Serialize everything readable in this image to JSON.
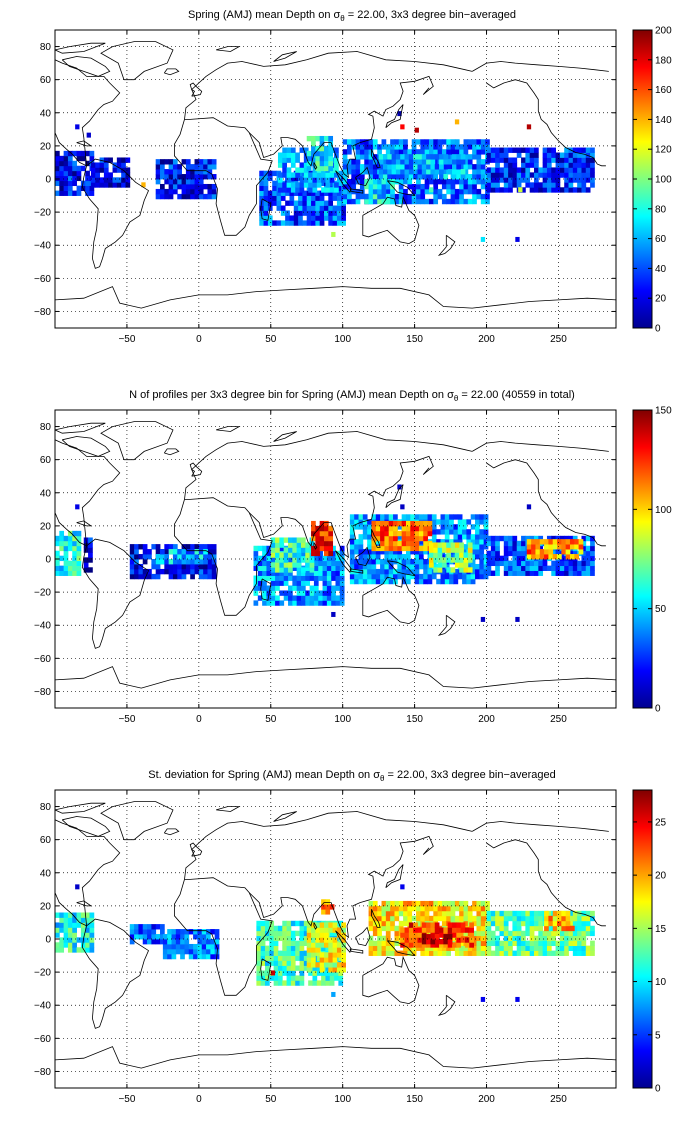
{
  "chart_data": [
    {
      "type": "heatmap",
      "title": "Spring (AMJ) mean Depth on",
      "title_symbol": "σ",
      "title_sub": "θ",
      "title_rest": " = 22.00, 3x3 degree bin−averaged",
      "xticks": [
        "−50",
        "0",
        "50",
        "100",
        "150",
        "200",
        "250"
      ],
      "xtick_values": [
        -50,
        0,
        50,
        100,
        150,
        200,
        250
      ],
      "yticks": [
        "80",
        "60",
        "40",
        "20",
        "0",
        "−20",
        "−40",
        "−60",
        "−80"
      ],
      "ytick_values": [
        80,
        60,
        40,
        20,
        0,
        -20,
        -40,
        -60,
        -80
      ],
      "xlim": [
        -100,
        290
      ],
      "ylim": [
        -90,
        90
      ],
      "grid": true,
      "colorbar": {
        "ticks": [
          "200",
          "180",
          "160",
          "140",
          "120",
          "100",
          "80",
          "60",
          "40",
          "20",
          "0"
        ],
        "tick_values": [
          200,
          180,
          160,
          140,
          120,
          100,
          80,
          60,
          40,
          20,
          0
        ],
        "range": [
          0,
          200
        ]
      },
      "regions": [
        {
          "x": [
            -100,
            -75
          ],
          "y": [
            -10,
            15
          ],
          "value": 25
        },
        {
          "x": [
            -75,
            -48
          ],
          "y": [
            -5,
            12
          ],
          "value": 20
        },
        {
          "x": [
            -30,
            12
          ],
          "y": [
            -12,
            12
          ],
          "value": 28
        },
        {
          "x": [
            42,
            100
          ],
          "y": [
            -28,
            5
          ],
          "value": 40
        },
        {
          "x": [
            55,
            95
          ],
          "y": [
            -8,
            18
          ],
          "value": 55
        },
        {
          "x": [
            75,
            92
          ],
          "y": [
            5,
            25
          ],
          "value": 75
        },
        {
          "x": [
            100,
            200
          ],
          "y": [
            -15,
            22
          ],
          "value": 45
        },
        {
          "x": [
            125,
            185
          ],
          "y": [
            0,
            15
          ],
          "value": 60
        },
        {
          "x": [
            200,
            275
          ],
          "y": [
            -8,
            18
          ],
          "value": 32
        },
        {
          "x": [
            115,
            135
          ],
          "y": [
            -15,
            -2
          ],
          "value": 70
        }
      ],
      "points": [
        {
          "x": -86,
          "y": 30,
          "value": 20
        },
        {
          "x": -78,
          "y": 25,
          "value": 15
        },
        {
          "x": -40,
          "y": -5,
          "value": 140
        },
        {
          "x": 138,
          "y": 38,
          "value": 10
        },
        {
          "x": 140,
          "y": 30,
          "value": 175
        },
        {
          "x": 150,
          "y": 28,
          "value": 190
        },
        {
          "x": 178,
          "y": 33,
          "value": 140
        },
        {
          "x": 228,
          "y": 30,
          "value": 190
        },
        {
          "x": 92,
          "y": -35,
          "value": 110
        },
        {
          "x": 196,
          "y": -38,
          "value": 70
        },
        {
          "x": 220,
          "y": -38,
          "value": 20
        },
        {
          "x": 222,
          "y": -8,
          "value": 115
        },
        {
          "x": 160,
          "y": -8,
          "value": 90
        }
      ]
    },
    {
      "type": "heatmap",
      "title": "N of profiles per 3x3 degree bin for Spring (AMJ) mean Depth on",
      "title_symbol": "σ",
      "title_sub": "θ",
      "title_rest": " = 22.00 (40559 in total)",
      "xticks": [
        "−50",
        "0",
        "50",
        "100",
        "150",
        "200",
        "250"
      ],
      "xtick_values": [
        -50,
        0,
        50,
        100,
        150,
        200,
        250
      ],
      "yticks": [
        "80",
        "60",
        "40",
        "20",
        "0",
        "−20",
        "−40",
        "−60",
        "−80"
      ],
      "ytick_values": [
        80,
        60,
        40,
        20,
        0,
        -20,
        -40,
        -60,
        -80
      ],
      "xlim": [
        -100,
        290
      ],
      "ylim": [
        -90,
        90
      ],
      "grid": true,
      "colorbar": {
        "ticks": [
          "150",
          "100",
          "50",
          "0"
        ],
        "tick_values": [
          150,
          100,
          50,
          0
        ],
        "range": [
          0,
          150
        ]
      },
      "regions": [
        {
          "x": [
            -100,
            -82
          ],
          "y": [
            -10,
            15
          ],
          "value": 60
        },
        {
          "x": [
            -80,
            -75
          ],
          "y": [
            -8,
            12
          ],
          "value": 15
        },
        {
          "x": [
            -48,
            12
          ],
          "y": [
            -12,
            8
          ],
          "value": 18
        },
        {
          "x": [
            -30,
            5
          ],
          "y": [
            -3,
            5
          ],
          "value": 45
        },
        {
          "x": [
            38,
            100
          ],
          "y": [
            -28,
            8
          ],
          "value": 40
        },
        {
          "x": [
            50,
            80
          ],
          "y": [
            -8,
            12
          ],
          "value": 65
        },
        {
          "x": [
            78,
            92
          ],
          "y": [
            2,
            22
          ],
          "value": 125
        },
        {
          "x": [
            105,
            200
          ],
          "y": [
            -15,
            25
          ],
          "value": 40
        },
        {
          "x": [
            120,
            160
          ],
          "y": [
            5,
            22
          ],
          "value": 115
        },
        {
          "x": [
            160,
            190
          ],
          "y": [
            -8,
            10
          ],
          "value": 80
        },
        {
          "x": [
            200,
            275
          ],
          "y": [
            -10,
            12
          ],
          "value": 30
        },
        {
          "x": [
            228,
            265
          ],
          "y": [
            0,
            10
          ],
          "value": 110
        }
      ],
      "points": [
        {
          "x": -86,
          "y": 30,
          "value": 15
        },
        {
          "x": 140,
          "y": 30,
          "value": 10
        },
        {
          "x": 138,
          "y": 42,
          "value": 10
        },
        {
          "x": 196,
          "y": -38,
          "value": 10
        },
        {
          "x": 220,
          "y": -38,
          "value": 10
        },
        {
          "x": 92,
          "y": -35,
          "value": 10
        },
        {
          "x": 228,
          "y": 30,
          "value": 10
        }
      ]
    },
    {
      "type": "heatmap",
      "title": "St. deviation for Spring (AMJ) mean Depth on",
      "title_symbol": "σ",
      "title_sub": "θ",
      "title_rest": " = 22.00, 3x3 degree bin−averaged",
      "xticks": [
        "−50",
        "0",
        "50",
        "100",
        "150",
        "200",
        "250"
      ],
      "xtick_values": [
        -50,
        0,
        50,
        100,
        150,
        200,
        250
      ],
      "yticks": [
        "80",
        "60",
        "40",
        "20",
        "0",
        "−20",
        "−40",
        "−60",
        "−80"
      ],
      "ytick_values": [
        80,
        60,
        40,
        20,
        0,
        -20,
        -40,
        -60,
        -80
      ],
      "xlim": [
        -100,
        290
      ],
      "ylim": [
        -90,
        90
      ],
      "grid": true,
      "colorbar": {
        "ticks": [
          "25",
          "20",
          "15",
          "10",
          "5",
          "0"
        ],
        "tick_values": [
          25,
          20,
          15,
          10,
          5,
          0
        ],
        "range": [
          0,
          28
        ]
      },
      "regions": [
        {
          "x": [
            -100,
            -75
          ],
          "y": [
            -8,
            15
          ],
          "value": 11
        },
        {
          "x": [
            -48,
            -25
          ],
          "y": [
            -3,
            8
          ],
          "value": 6
        },
        {
          "x": [
            -25,
            12
          ],
          "y": [
            -12,
            5
          ],
          "value": 7
        },
        {
          "x": [
            40,
            100
          ],
          "y": [
            -28,
            10
          ],
          "value": 12
        },
        {
          "x": [
            75,
            100
          ],
          "y": [
            -20,
            8
          ],
          "value": 17
        },
        {
          "x": [
            85,
            92
          ],
          "y": [
            15,
            22
          ],
          "value": 20
        },
        {
          "x": [
            118,
            200
          ],
          "y": [
            -10,
            22
          ],
          "value": 18
        },
        {
          "x": [
            140,
            190
          ],
          "y": [
            -5,
            10
          ],
          "value": 23
        },
        {
          "x": [
            155,
            175
          ],
          "y": [
            -3,
            3
          ],
          "value": 26
        },
        {
          "x": [
            200,
            275
          ],
          "y": [
            -10,
            15
          ],
          "value": 13
        },
        {
          "x": [
            240,
            260
          ],
          "y": [
            5,
            15
          ],
          "value": 19
        }
      ],
      "points": [
        {
          "x": -86,
          "y": 30,
          "value": 2
        },
        {
          "x": 50,
          "y": -22,
          "value": 26
        },
        {
          "x": 140,
          "y": 30,
          "value": 3
        },
        {
          "x": 92,
          "y": -35,
          "value": 8
        },
        {
          "x": 196,
          "y": -38,
          "value": 3
        },
        {
          "x": 220,
          "y": -38,
          "value": 3
        }
      ]
    }
  ]
}
